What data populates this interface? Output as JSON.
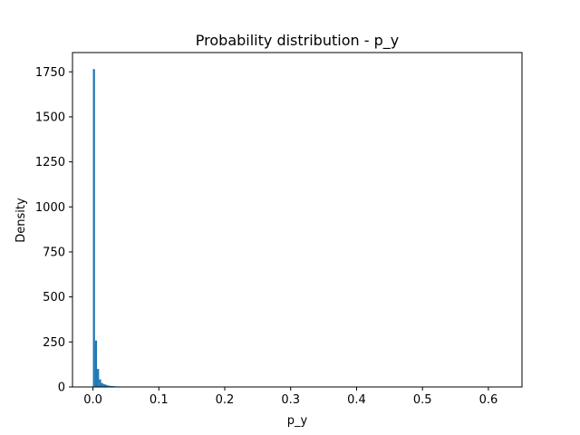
{
  "chart_data": {
    "type": "bar",
    "title": "Probability distribution - p_y",
    "xlabel": "p_y",
    "ylabel": "Density",
    "xlim": [
      -0.031,
      0.651
    ],
    "ylim": [
      0,
      1857
    ],
    "grid": false,
    "legend": "none",
    "bar_color": "#1f77b4",
    "bin_width": 0.0031,
    "bins": [
      {
        "x": 0.0,
        "y": 1765
      },
      {
        "x": 0.0031,
        "y": 258
      },
      {
        "x": 0.0062,
        "y": 100
      },
      {
        "x": 0.0093,
        "y": 42
      },
      {
        "x": 0.0124,
        "y": 22
      },
      {
        "x": 0.0155,
        "y": 15
      },
      {
        "x": 0.0186,
        "y": 12
      },
      {
        "x": 0.0217,
        "y": 8
      },
      {
        "x": 0.0248,
        "y": 6
      },
      {
        "x": 0.0279,
        "y": 5
      },
      {
        "x": 0.031,
        "y": 4
      },
      {
        "x": 0.0341,
        "y": 3
      },
      {
        "x": 0.0372,
        "y": 3
      },
      {
        "x": 0.0403,
        "y": 2
      },
      {
        "x": 0.0434,
        "y": 2
      },
      {
        "x": 0.0465,
        "y": 1
      },
      {
        "x": 0.0496,
        "y": 2
      },
      {
        "x": 0.0527,
        "y": 1
      },
      {
        "x": 0.0558,
        "y": 1
      },
      {
        "x": 0.0589,
        "y": 1
      },
      {
        "x": 0.062,
        "y": 1
      },
      {
        "x": 0.0651,
        "y": 1
      },
      {
        "x": 0.0713,
        "y": 1
      },
      {
        "x": 0.0806,
        "y": 1
      },
      {
        "x": 0.093,
        "y": 1
      }
    ],
    "xticks": [
      0.0,
      0.1,
      0.2,
      0.3,
      0.4,
      0.5,
      0.6
    ],
    "xtick_labels": [
      "0.0",
      "0.1",
      "0.2",
      "0.3",
      "0.4",
      "0.5",
      "0.6"
    ],
    "yticks": [
      0,
      250,
      500,
      750,
      1000,
      1250,
      1500,
      1750
    ],
    "ytick_labels": [
      "0",
      "250",
      "500",
      "750",
      "1000",
      "1250",
      "1500",
      "1750"
    ]
  }
}
